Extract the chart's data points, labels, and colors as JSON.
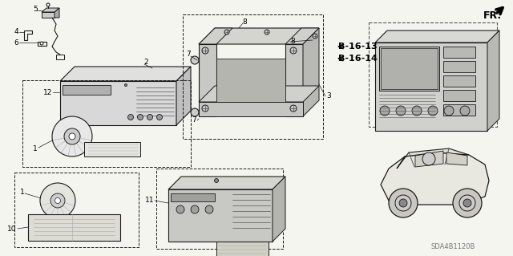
{
  "bg_color": "#f5f5f0",
  "line_color": "#1a1a1a",
  "text_color": "#000000",
  "watermark": "SDA4B1120B",
  "fr_label": "FR.",
  "fig_width": 6.4,
  "fig_height": 3.19,
  "dpi": 100,
  "gray": "#888888",
  "lightgray": "#cccccc",
  "darkgray": "#555555",
  "midgray": "#aaaaaa"
}
